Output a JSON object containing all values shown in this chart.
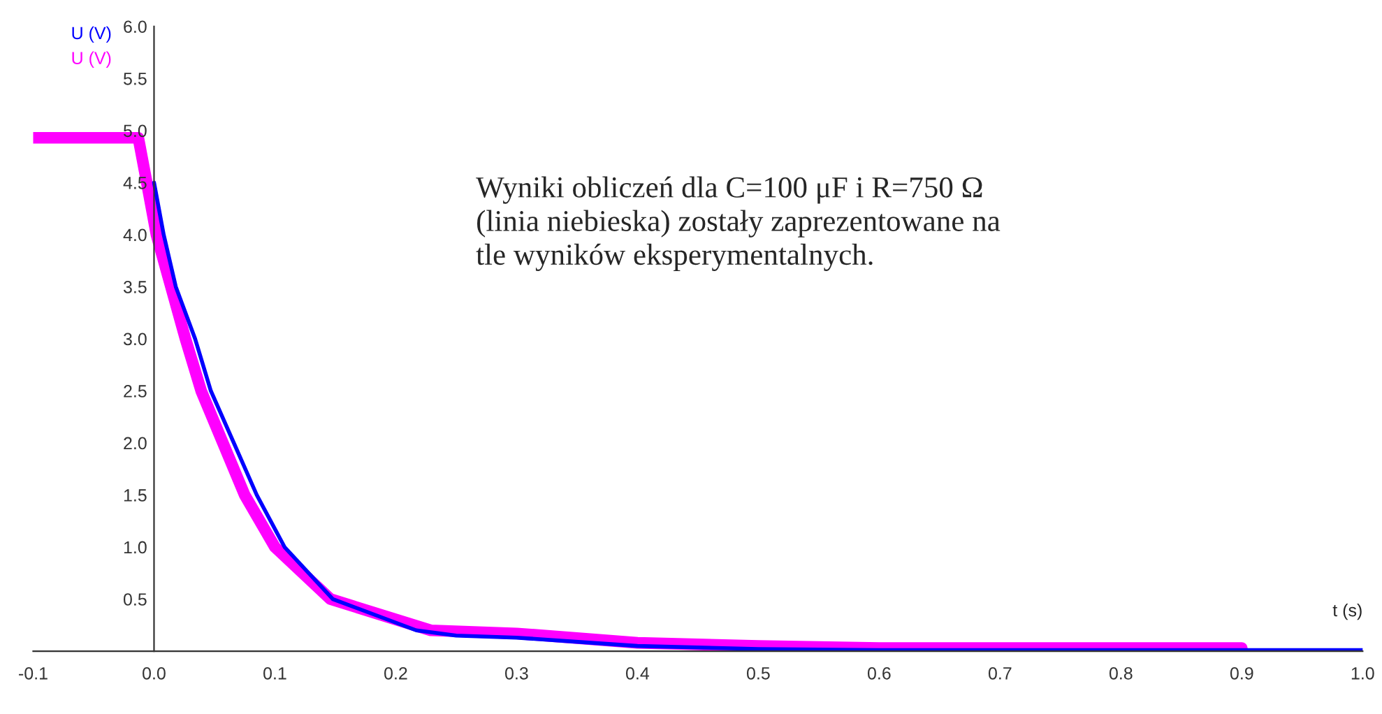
{
  "chart_data": {
    "type": "line",
    "xlabel": "t (s)",
    "xlim": [
      -0.1,
      1.0
    ],
    "ylim": [
      0,
      6.0
    ],
    "xticks": [
      {
        "value": -0.1,
        "label": "-0.1"
      },
      {
        "value": 0,
        "label": "0.0"
      },
      {
        "value": 0.1,
        "label": "0.1"
      },
      {
        "value": 0.2,
        "label": "0.2"
      },
      {
        "value": 0.3,
        "label": "0.3"
      },
      {
        "value": 0.4,
        "label": "0.4"
      },
      {
        "value": 0.5,
        "label": "0.5"
      },
      {
        "value": 0.6,
        "label": "0.6"
      },
      {
        "value": 0.7,
        "label": "0.7"
      },
      {
        "value": 0.8,
        "label": "0.8"
      },
      {
        "value": 0.9,
        "label": "0.9"
      },
      {
        "value": 1.0,
        "label": "1.0"
      }
    ],
    "yticks": [
      {
        "value": 0,
        "label": null
      },
      0.5,
      {
        "value": 1,
        "label": "1.0"
      },
      1.5,
      {
        "value": 2,
        "label": "2.0"
      },
      2.5,
      {
        "value": 3,
        "label": "3.0"
      },
      3.5,
      {
        "value": 4,
        "label": "4.0"
      },
      4.5,
      {
        "value": 5,
        "label": "5.0"
      },
      5.5,
      {
        "value": 6,
        "label": "6.0"
      }
    ],
    "grid": false,
    "series": [
      {
        "name": "U (V)",
        "color": "#0000ff",
        "x": [
          0,
          0.008,
          0.018,
          0.034,
          0.047,
          0.066,
          0.085,
          0.108,
          0.148,
          0.217,
          0.25,
          0.3,
          0.4,
          0.5,
          0.6,
          0.7,
          0.8,
          0.9,
          1.0
        ],
        "values": [
          4.5,
          4.0,
          3.5,
          3.0,
          2.5,
          2.0,
          1.5,
          1.0,
          0.5,
          0.2,
          0.15,
          0.13,
          0.05,
          0.02,
          0.01,
          0.01,
          0.01,
          0.01,
          0.01
        ]
      },
      {
        "name": "U (V)",
        "color": "#ff00ff",
        "x": [
          -0.1,
          -0.013,
          -0.006,
          0.002,
          0.014,
          0.026,
          0.039,
          0.057,
          0.075,
          0.1,
          0.146,
          0.229,
          0.3,
          0.4,
          0.5,
          0.6,
          0.7,
          0.8,
          0.9
        ],
        "values": [
          4.93,
          4.93,
          4.5,
          4.0,
          3.5,
          3.0,
          2.5,
          2.0,
          1.5,
          1.0,
          0.5,
          0.2,
          0.17,
          0.08,
          0.05,
          0.03,
          0.03,
          0.03,
          0.03
        ]
      }
    ],
    "annotations": [
      "Wyniki obliczeń dla C=100 μF i R=750 Ω\n(linia niebieska) zostały zaprezentowane na\ntle wyników eksperymentalnych."
    ]
  }
}
